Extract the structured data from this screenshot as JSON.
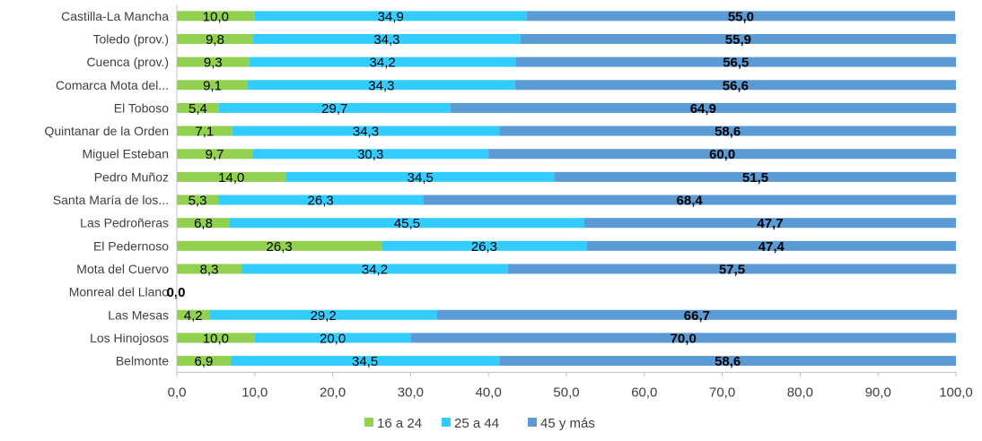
{
  "chart_data": {
    "type": "bar",
    "orientation": "horizontal",
    "stacked": true,
    "categories": [
      "Castilla-La Mancha",
      "Toledo (prov.)",
      "Cuenca (prov.)",
      "Comarca Mota del...",
      "El Toboso",
      "Quintanar de la Orden",
      "Miguel Esteban",
      "Pedro Muñoz",
      "Santa María de los...",
      "Las Pedroñeras",
      "El Pedernoso",
      "Mota del Cuervo",
      "Monreal del Llano",
      "Las Mesas",
      "Los Hinojosos",
      "Belmonte"
    ],
    "series": [
      {
        "name": "16 a 24",
        "color": "#92D050",
        "values": [
          10.0,
          9.8,
          9.3,
          9.1,
          5.4,
          7.1,
          9.7,
          14.0,
          5.3,
          6.8,
          26.3,
          8.3,
          0.0,
          4.2,
          10.0,
          6.9
        ],
        "labels": [
          "10,0",
          "9,8",
          "9,3",
          "9,1",
          "5,4",
          "7,1",
          "9,7",
          "14,0",
          "5,3",
          "6,8",
          "26,3",
          "8,3",
          "0,0",
          "4,2",
          "10,0",
          "6,9"
        ]
      },
      {
        "name": "25 a 44",
        "color": "#33CCFF",
        "values": [
          34.9,
          34.3,
          34.2,
          34.3,
          29.7,
          34.3,
          30.3,
          34.5,
          26.3,
          45.5,
          26.3,
          34.2,
          0.0,
          29.2,
          20.0,
          34.5
        ],
        "labels": [
          "34,9",
          "34,3",
          "34,2",
          "34,3",
          "29,7",
          "34,3",
          "30,3",
          "34,5",
          "26,3",
          "45,5",
          "26,3",
          "34,2",
          "",
          "29,2",
          "20,0",
          "34,5"
        ]
      },
      {
        "name": "45 y más",
        "color": "#5B9BD5",
        "values": [
          55.0,
          55.9,
          56.5,
          56.6,
          64.9,
          58.6,
          60.0,
          51.5,
          68.4,
          47.7,
          47.4,
          57.5,
          0.0,
          66.7,
          70.0,
          58.6
        ],
        "labels": [
          "55,0",
          "55,9",
          "56,5",
          "56,6",
          "64,9",
          "58,6",
          "60,0",
          "51,5",
          "68,4",
          "47,7",
          "47,4",
          "57,5",
          "",
          "66,7",
          "70,0",
          "58,6"
        ]
      }
    ],
    "xlim": [
      0,
      100
    ],
    "xticks": [
      "0,0",
      "10,0",
      "20,0",
      "30,0",
      "40,0",
      "50,0",
      "60,0",
      "70,0",
      "80,0",
      "90,0",
      "100,0"
    ],
    "grid": false,
    "legend": "bottom"
  }
}
